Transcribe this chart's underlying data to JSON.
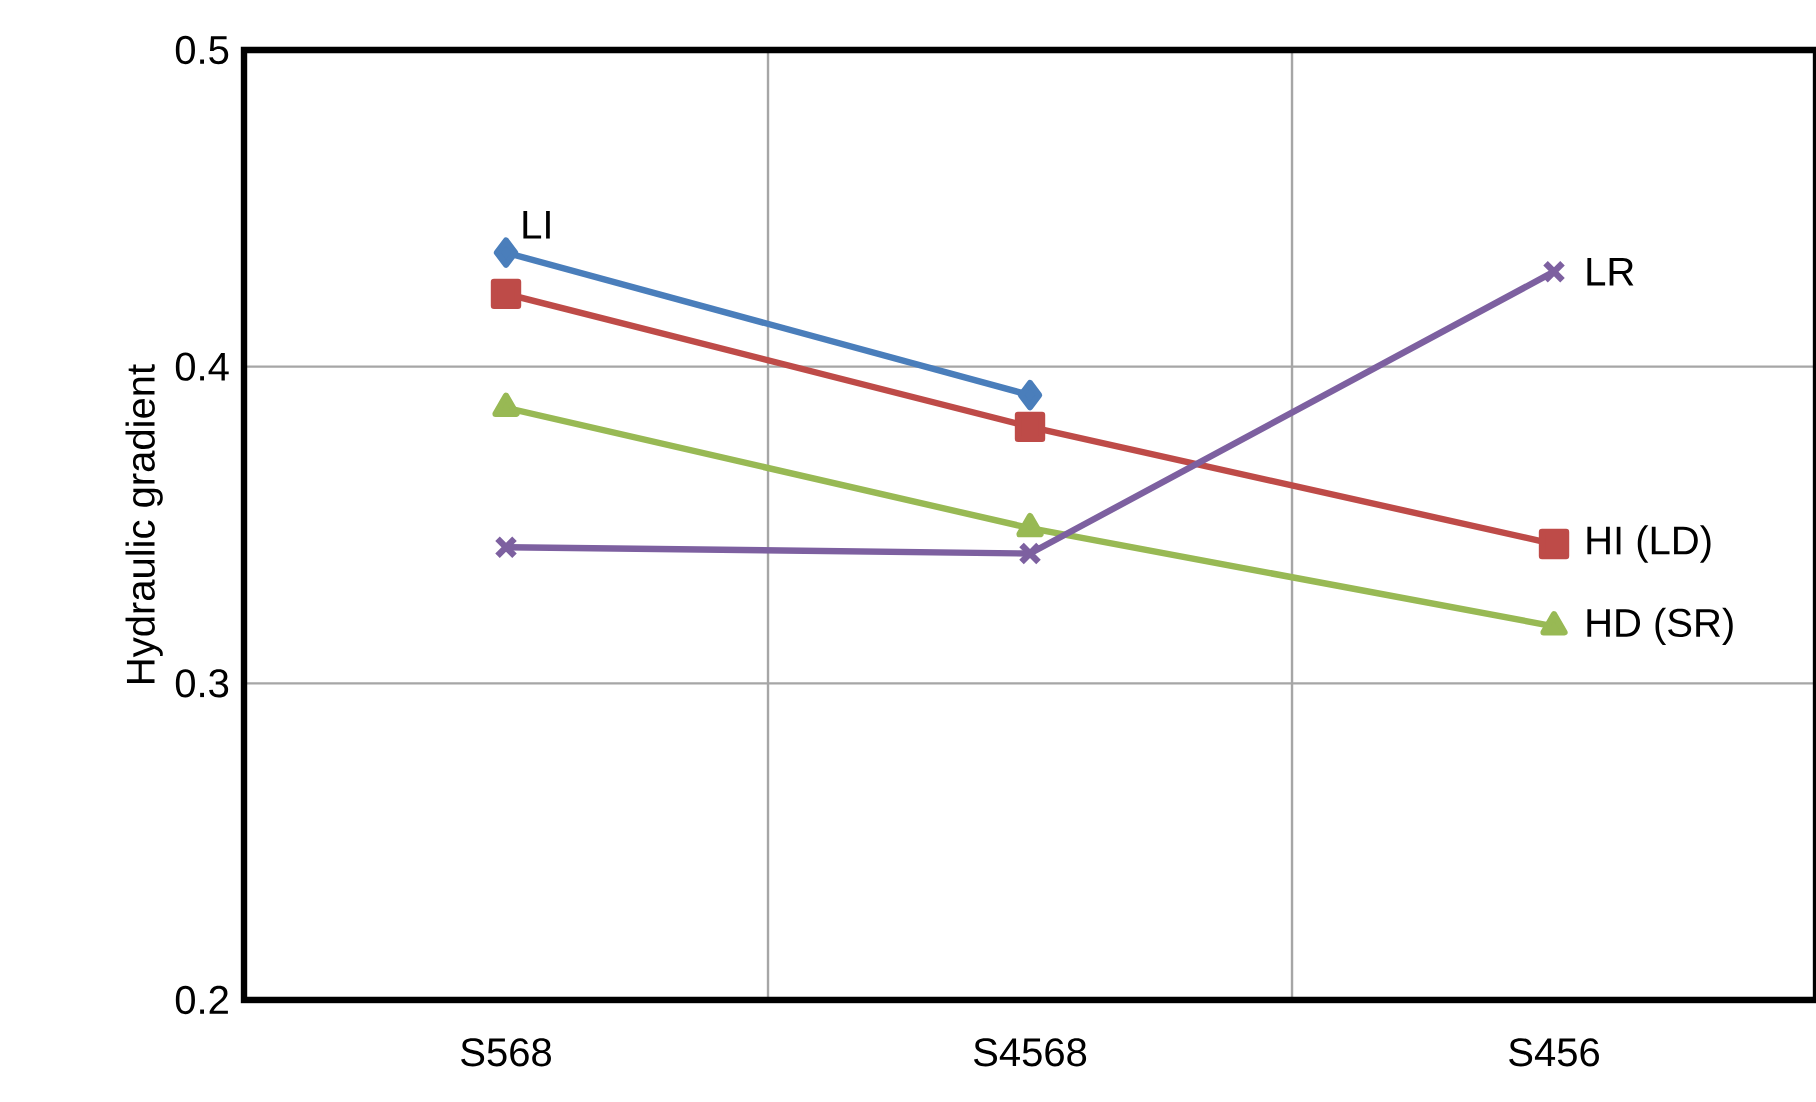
{
  "chart_data": {
    "type": "line",
    "ylabel": "Hydraulic gradient",
    "categories": [
      "S568",
      "S4568",
      "S456"
    ],
    "series": [
      {
        "name": "LI",
        "color": "#4a7ebb",
        "marker": "diamond",
        "values": [
          0.436,
          0.391,
          null
        ]
      },
      {
        "name": "HI (LD)",
        "color": "#be4b48",
        "marker": "square",
        "values": [
          0.423,
          0.381,
          0.344
        ]
      },
      {
        "name": "HD (SR)",
        "color": "#98b954",
        "marker": "triangle",
        "values": [
          0.387,
          0.349,
          0.318
        ]
      },
      {
        "name": "LR",
        "color": "#7d60a0",
        "marker": "cross",
        "values": [
          0.343,
          0.341,
          0.43
        ]
      }
    ],
    "ylim": [
      0.2,
      0.5
    ],
    "yticks": [
      0.2,
      0.3,
      0.4,
      0.5
    ],
    "grid": true
  }
}
